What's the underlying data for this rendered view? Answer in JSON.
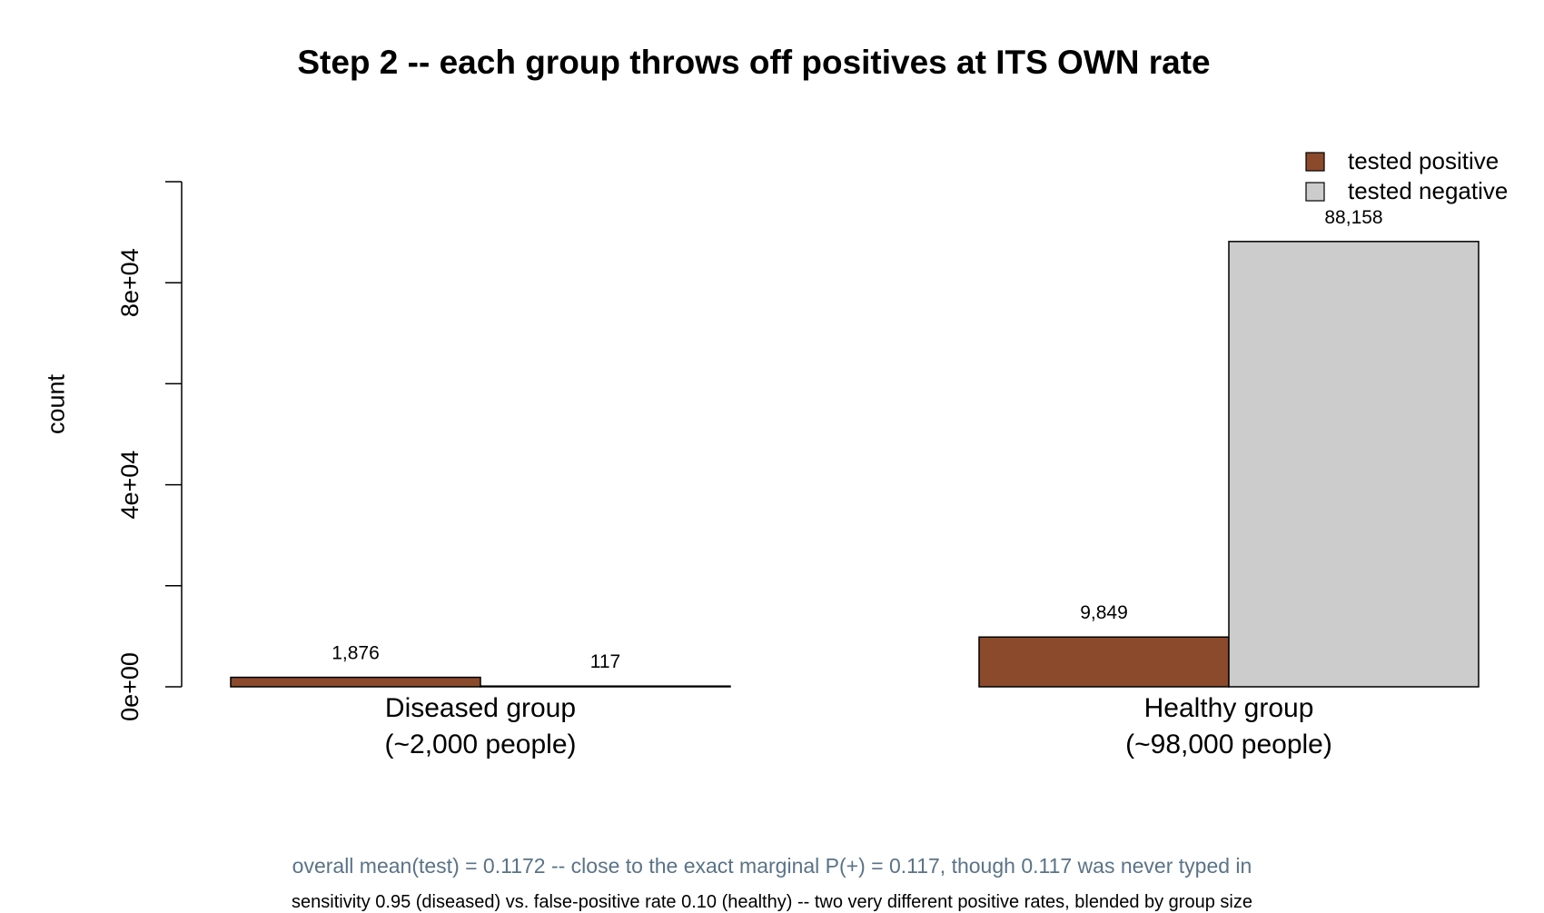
{
  "chart_data": {
    "type": "bar",
    "title": "Step 2 -- each group throws off positives at ITS OWN rate",
    "xlabel": "",
    "ylabel": "count",
    "categories": [
      [
        "Diseased group",
        "(~2,000 people)"
      ],
      [
        "Healthy group",
        "(~98,000 people)"
      ]
    ],
    "series": [
      {
        "name": "tested positive",
        "values": [
          1876,
          9849
        ],
        "labels": [
          "1,876",
          "9,849"
        ],
        "color": "#8B4A2B"
      },
      {
        "name": "tested negative",
        "values": [
          117,
          88158
        ],
        "labels": [
          "117",
          "88,158"
        ],
        "color": "#CCCCCC"
      }
    ],
    "ylim": [
      0,
      100000
    ],
    "yticks": [
      0,
      20000,
      40000,
      60000,
      80000,
      100000
    ],
    "ytick_labels": [
      "0e+00",
      "",
      "4e+04",
      "",
      "8e+04",
      ""
    ],
    "legend_position": "top-right",
    "grid": false
  },
  "captions": {
    "line1": "overall mean(test) = 0.1172 -- close to the exact marginal P(+) = 0.117, though 0.117 was never typed in",
    "line2": "sensitivity 0.95 (diseased) vs. false-positive rate 0.10 (healthy) -- two very different positive rates, blended by group size",
    "line1_color": "#5a7387"
  }
}
